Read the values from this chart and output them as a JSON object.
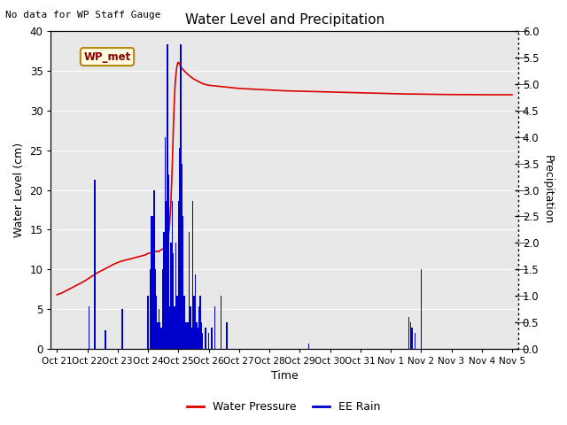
{
  "title": "Water Level and Precipitation",
  "subtitle": "No data for WP Staff Gauge",
  "annotation": "WP_met",
  "xlabel": "Time",
  "ylabel_left": "Water Level (cm)",
  "ylabel_right": "Precipitation",
  "ylim_left": [
    0,
    40
  ],
  "ylim_right": [
    0,
    6.0
  ],
  "yticks_left": [
    0,
    5,
    10,
    15,
    20,
    25,
    30,
    35,
    40
  ],
  "yticks_right": [
    0.0,
    0.5,
    1.0,
    1.5,
    2.0,
    2.5,
    3.0,
    3.5,
    4.0,
    4.5,
    5.0,
    5.5,
    6.0
  ],
  "bg_color": "#e8e8e8",
  "line_color_wp": "#dd0000",
  "bar_color_rain": "#0000cc",
  "legend_items": [
    "Water Pressure",
    "EE Rain"
  ],
  "xtick_labels": [
    "Oct 21",
    "Oct 22",
    "Oct 23",
    "Oct 24",
    "Oct 25",
    "Oct 26",
    "Oct 27",
    "Oct 28",
    "Oct 29",
    "Oct 30",
    "Oct 31",
    "Nov 1",
    "Nov 2",
    "Nov 3",
    "Nov 4",
    "Nov 5"
  ],
  "wp_x": [
    0.0,
    0.15,
    0.3,
    0.5,
    0.7,
    0.9,
    1.1,
    1.3,
    1.5,
    1.7,
    1.9,
    2.1,
    2.3,
    2.5,
    2.7,
    2.9,
    3.0,
    3.1,
    3.2,
    3.25,
    3.3,
    3.35,
    3.4,
    3.45,
    3.5,
    3.55,
    3.6,
    3.65,
    3.7,
    3.75,
    3.8,
    3.83,
    3.86,
    3.89,
    3.92,
    3.95,
    3.98,
    4.0,
    4.02,
    4.05,
    4.08,
    4.1,
    4.15,
    4.2,
    4.3,
    4.4,
    4.5,
    4.6,
    4.7,
    4.8,
    5.0,
    5.5,
    6.0,
    6.5,
    7.0,
    7.5,
    8.0,
    8.5,
    9.0,
    9.5,
    10.0,
    10.5,
    11.0,
    11.5,
    12.0,
    12.5,
    13.0,
    13.5,
    14.0,
    14.5,
    15.0
  ],
  "wp_y": [
    6.8,
    7.0,
    7.3,
    7.7,
    8.1,
    8.5,
    9.0,
    9.5,
    9.9,
    10.3,
    10.7,
    11.0,
    11.2,
    11.4,
    11.6,
    11.8,
    12.0,
    12.1,
    12.2,
    12.25,
    12.3,
    12.2,
    12.4,
    12.5,
    12.6,
    12.8,
    13.2,
    13.8,
    15.0,
    18.0,
    23.0,
    27.0,
    30.5,
    33.0,
    34.5,
    35.5,
    36.0,
    36.1,
    36.0,
    35.8,
    35.6,
    35.4,
    35.2,
    35.0,
    34.6,
    34.3,
    34.0,
    33.8,
    33.6,
    33.4,
    33.2,
    33.0,
    32.8,
    32.7,
    32.6,
    32.5,
    32.45,
    32.4,
    32.35,
    32.3,
    32.25,
    32.2,
    32.15,
    32.1,
    32.08,
    32.05,
    32.03,
    32.02,
    32.01,
    32.0,
    32.0
  ],
  "rain_x": [
    1.05,
    1.25,
    1.6,
    2.15,
    3.0,
    3.08,
    3.12,
    3.16,
    3.2,
    3.24,
    3.28,
    3.32,
    3.36,
    3.4,
    3.44,
    3.48,
    3.52,
    3.56,
    3.6,
    3.64,
    3.68,
    3.72,
    3.76,
    3.8,
    3.84,
    3.88,
    3.92,
    3.96,
    4.0,
    4.04,
    4.08,
    4.12,
    4.16,
    4.2,
    4.24,
    4.28,
    4.32,
    4.36,
    4.4,
    4.44,
    4.48,
    4.52,
    4.56,
    4.6,
    4.64,
    4.68,
    4.72,
    4.76,
    4.8,
    4.9,
    5.0,
    5.1,
    5.2,
    5.4,
    5.6,
    8.3,
    11.6,
    11.65,
    11.7,
    11.8,
    12.0
  ],
  "rain_h": [
    0.8,
    3.2,
    0.35,
    0.75,
    1.0,
    1.5,
    2.5,
    2.5,
    3.0,
    1.5,
    1.0,
    0.5,
    0.75,
    0.5,
    0.4,
    1.5,
    2.2,
    4.0,
    2.8,
    5.75,
    3.3,
    0.8,
    2.0,
    2.8,
    1.8,
    0.8,
    2.0,
    1.0,
    2.8,
    3.8,
    5.75,
    3.5,
    2.5,
    1.0,
    0.5,
    0.5,
    0.5,
    2.2,
    0.8,
    0.4,
    2.8,
    1.0,
    1.4,
    0.5,
    0.4,
    0.8,
    1.0,
    0.5,
    0.3,
    0.4,
    0.3,
    0.4,
    0.8,
    1.0,
    0.5,
    0.1,
    0.6,
    0.5,
    0.4,
    0.3,
    1.5
  ]
}
